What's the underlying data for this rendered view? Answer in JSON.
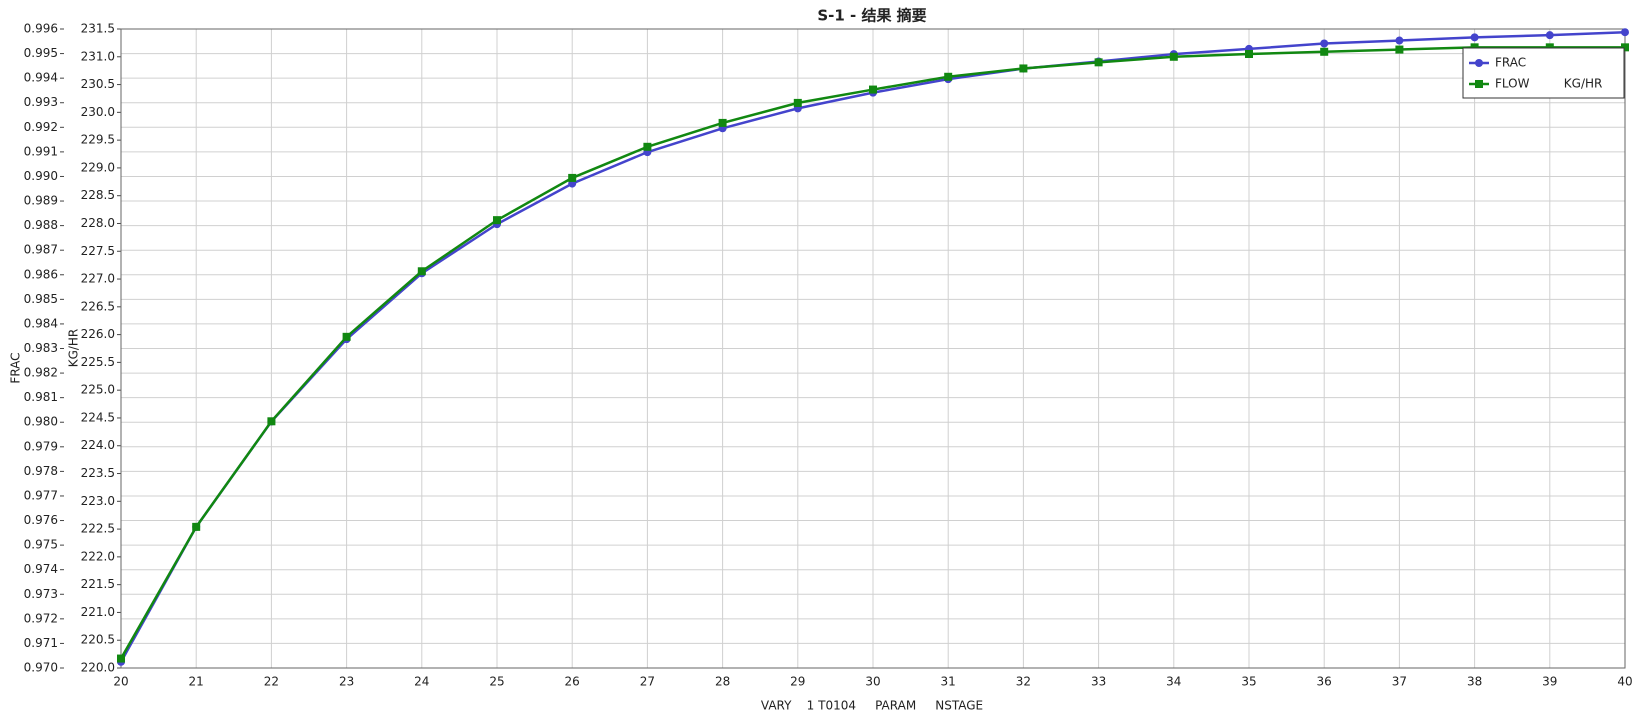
{
  "chart_data": {
    "type": "line",
    "title": "S-1 - 结果 摘要",
    "x_label": "VARY    1 T0104     PARAM     NSTAGE",
    "y_label": "FRAC",
    "y2_label": "KG/HR",
    "x": [
      20,
      21,
      22,
      23,
      24,
      25,
      26,
      27,
      28,
      29,
      30,
      31,
      32,
      33,
      34,
      35,
      36,
      37,
      38,
      39,
      40
    ],
    "xlim": [
      20,
      40
    ],
    "xticks": [
      20,
      21,
      22,
      23,
      24,
      25,
      26,
      27,
      28,
      29,
      30,
      31,
      32,
      33,
      34,
      35,
      36,
      37,
      38,
      39,
      40
    ],
    "ylim": [
      0.97,
      0.996
    ],
    "yticks": [
      {
        "value": 0.97,
        "label": "0.970"
      },
      0.971,
      0.972,
      0.973,
      0.974,
      0.975,
      0.976,
      0.977,
      0.978,
      0.979,
      {
        "value": 0.98,
        "label": "0.980"
      },
      0.981,
      0.982,
      0.983,
      0.984,
      0.985,
      0.986,
      0.987,
      0.988,
      0.989,
      {
        "value": 0.99,
        "label": "0.990"
      },
      0.991,
      0.992,
      0.993,
      0.994,
      0.995,
      0.996
    ],
    "y2lim": [
      220.0,
      231.5
    ],
    "y2ticks": [
      {
        "value": 220,
        "label": "220.0"
      },
      220.5,
      {
        "value": 221,
        "label": "221.0"
      },
      221.5,
      {
        "value": 222,
        "label": "222.0"
      },
      222.5,
      {
        "value": 223,
        "label": "223.0"
      },
      223.5,
      {
        "value": 224,
        "label": "224.0"
      },
      224.5,
      {
        "value": 225,
        "label": "225.0"
      },
      225.5,
      {
        "value": 226,
        "label": "226.0"
      },
      226.5,
      {
        "value": 227,
        "label": "227.0"
      },
      227.5,
      {
        "value": 228,
        "label": "228.0"
      },
      228.5,
      {
        "value": 229,
        "label": "229.0"
      },
      229.5,
      {
        "value": 230,
        "label": "230.0"
      },
      230.5,
      {
        "value": 231,
        "label": "231.0"
      },
      231.5
    ],
    "grid": true,
    "legend": "upper right",
    "series": [
      {
        "name": "FRAC",
        "color": "#4444cc",
        "marker": "circle",
        "axis": "y",
        "values": [
          0.97025,
          0.97574,
          0.98003,
          0.98338,
          0.98606,
          0.98806,
          0.98971,
          0.99099,
          0.99196,
          0.99277,
          0.99341,
          0.99396,
          0.99439,
          0.99468,
          0.99498,
          0.99519,
          0.99541,
          0.99553,
          0.99566,
          0.99575,
          0.99587
        ]
      },
      {
        "name": "FLOW         KG/HR",
        "color": "#118811",
        "marker": "square",
        "axis": "y2",
        "values": [
          220.17,
          222.54,
          224.44,
          225.96,
          227.14,
          228.06,
          228.82,
          229.38,
          229.81,
          230.17,
          230.41,
          230.64,
          230.79,
          230.9,
          231.0,
          231.05,
          231.09,
          231.13,
          231.17,
          231.17,
          231.17
        ]
      }
    ]
  }
}
